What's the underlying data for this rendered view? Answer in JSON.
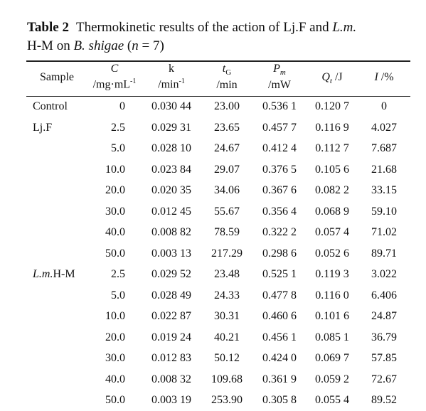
{
  "caption": {
    "label": "Table 2",
    "text_1": "Thermokinetic results of the action of Lj.F and ",
    "italic_1": "L.m.",
    "text_2": "H-M on ",
    "italic_2": "B. shigae",
    "text_3": " (",
    "italic_3": "n",
    "text_4": " = 7)"
  },
  "headers": {
    "sample": "Sample",
    "c_symbol": "C",
    "c_unit": "/mg·mL",
    "c_unit_exp": "-1",
    "k_symbol": "k",
    "k_unit": "/min",
    "k_unit_exp": "-1",
    "t_symbol": "t",
    "t_sub": "G",
    "t_unit": "/min",
    "p_symbol": "P",
    "p_sub": "m",
    "p_unit": "/mW",
    "q_symbol": "Q",
    "q_sub": "t",
    "q_unit": " /J",
    "i_symbol": "I",
    "i_unit": " /%"
  },
  "rows": [
    {
      "sample": "Control",
      "C": "0",
      "k": "0.030 44",
      "t": "23.00",
      "p": "0.536 1",
      "q": "0.120 7",
      "i": "0"
    },
    {
      "sample": "Lj.F",
      "C": "2.5",
      "k": "0.029 31",
      "t": "23.65",
      "p": "0.457 7",
      "q": "0.116 9",
      "i": "4.027"
    },
    {
      "sample": "",
      "C": "5.0",
      "k": "0.028 10",
      "t": "24.67",
      "p": "0.412 4",
      "q": "0.112 7",
      "i": "7.687"
    },
    {
      "sample": "",
      "C": "10.0",
      "k": "0.023 84",
      "t": "29.07",
      "p": "0.376 5",
      "q": "0.105 6",
      "i": "21.68"
    },
    {
      "sample": "",
      "C": "20.0",
      "k": "0.020 35",
      "t": "34.06",
      "p": "0.367 6",
      "q": "0.082 2",
      "i": "33.15"
    },
    {
      "sample": "",
      "C": "30.0",
      "k": "0.012 45",
      "t": "55.67",
      "p": "0.356 4",
      "q": "0.068 9",
      "i": "59.10"
    },
    {
      "sample": "",
      "C": "40.0",
      "k": "0.008 82",
      "t": "78.59",
      "p": "0.322 2",
      "q": "0.057 4",
      "i": "71.02"
    },
    {
      "sample": "",
      "C": "50.0",
      "k": "0.003 13",
      "t": "217.29",
      "p": "0.298 6",
      "q": "0.052 6",
      "i": "89.71"
    },
    {
      "sample_italic": "L.m.",
      "sample": "H-M",
      "C": "2.5",
      "k": "0.029 52",
      "t": "23.48",
      "p": "0.525 1",
      "q": "0.119 3",
      "i": "3.022"
    },
    {
      "sample": "",
      "C": "5.0",
      "k": "0.028 49",
      "t": "24.33",
      "p": "0.477 8",
      "q": "0.116 0",
      "i": "6.406"
    },
    {
      "sample": "",
      "C": "10.0",
      "k": "0.022 87",
      "t": "30.31",
      "p": "0.460 6",
      "q": "0.101 6",
      "i": "24.87"
    },
    {
      "sample": "",
      "C": "20.0",
      "k": "0.019 24",
      "t": "40.21",
      "p": "0.456 1",
      "q": "0.085 1",
      "i": "36.79"
    },
    {
      "sample": "",
      "C": "30.0",
      "k": "0.012 83",
      "t": "50.12",
      "p": "0.424 0",
      "q": "0.069 7",
      "i": "57.85"
    },
    {
      "sample": "",
      "C": "40.0",
      "k": "0.008 32",
      "t": "109.68",
      "p": "0.361 9",
      "q": "0.059 2",
      "i": "72.67"
    },
    {
      "sample": "",
      "C": "50.0",
      "k": "0.003 19",
      "t": "253.90",
      "p": "0.305 8",
      "q": "0.055 4",
      "i": "89.52"
    }
  ]
}
